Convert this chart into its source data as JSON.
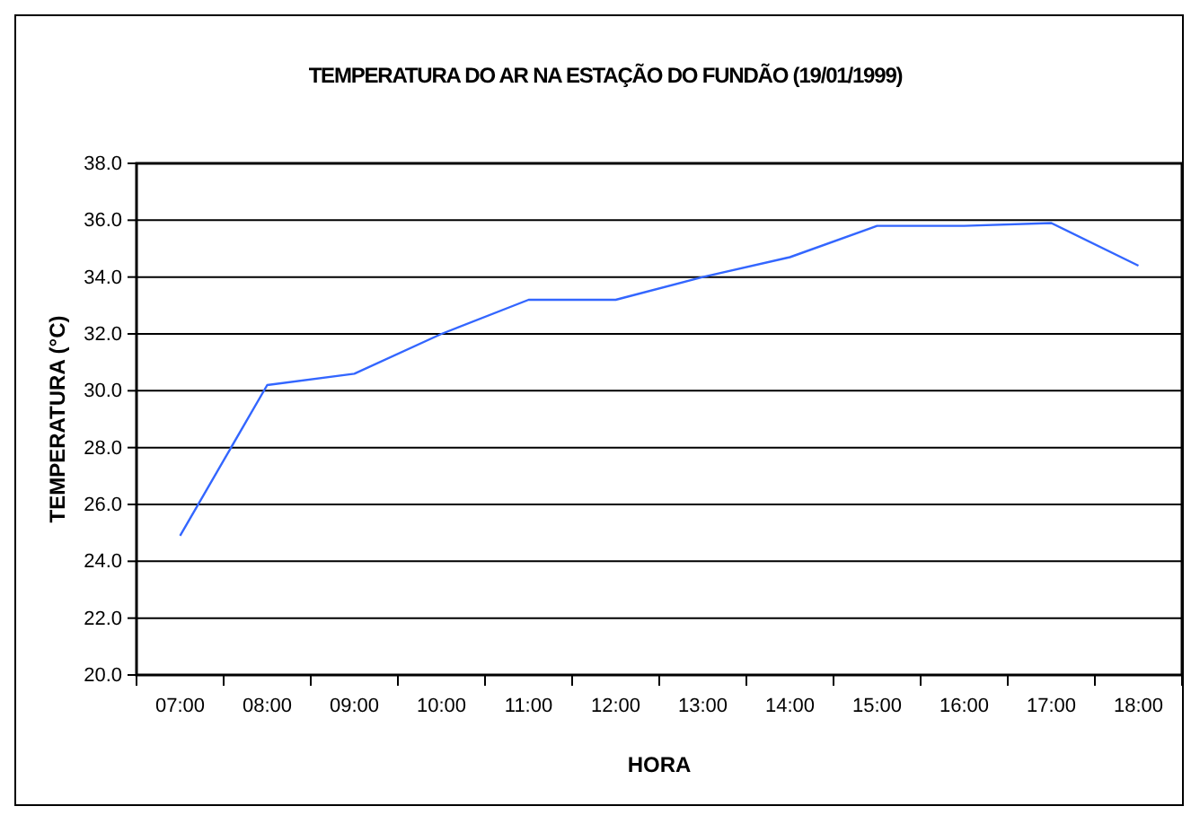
{
  "chart_data": {
    "type": "line",
    "title": "TEMPERATURA DO AR NA ESTAÇÃO DO FUNDÃO (19/01/1999)",
    "xlabel": "HORA",
    "ylabel": "TEMPERATURA (°C)",
    "categories": [
      "07:00",
      "08:00",
      "09:00",
      "10:00",
      "11:00",
      "12:00",
      "13:00",
      "14:00",
      "15:00",
      "16:00",
      "17:00",
      "18:00"
    ],
    "series": [
      {
        "color": "#3366ff",
        "values": [
          24.9,
          30.2,
          30.6,
          32.0,
          33.2,
          33.2,
          34.0,
          34.7,
          35.8,
          35.8,
          35.9,
          34.4
        ]
      }
    ],
    "ylim": [
      20,
      38
    ],
    "yticks": [
      {
        "value": 20,
        "label": "20.0"
      },
      {
        "value": 22,
        "label": "22.0"
      },
      {
        "value": 24,
        "label": "24.0"
      },
      {
        "value": 26,
        "label": "26.0"
      },
      {
        "value": 28,
        "label": "28.0"
      },
      {
        "value": 30,
        "label": "30.0"
      },
      {
        "value": 32,
        "label": "32.0"
      },
      {
        "value": 34,
        "label": "34.0"
      },
      {
        "value": 36,
        "label": "36.0"
      },
      {
        "value": 38,
        "label": "38.0"
      }
    ],
    "grid": "y",
    "legend": false,
    "marker": "none",
    "line_style": "solid"
  }
}
